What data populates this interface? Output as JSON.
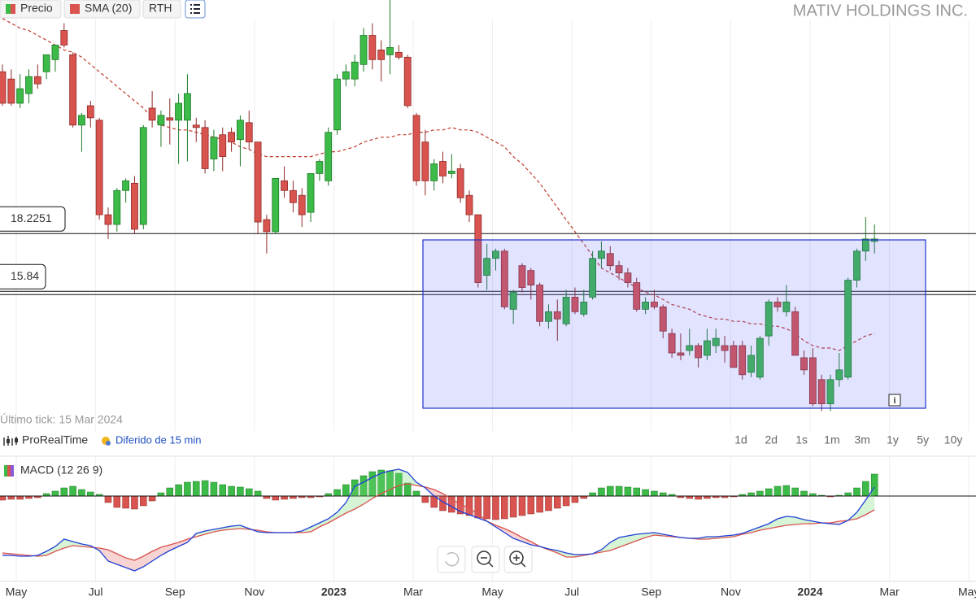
{
  "title": "MATIV HOLDINGS INC.",
  "toolbar": {
    "rth": "RTH"
  },
  "last_tick": "Último tick: 15 Mar 2024",
  "brand": "ProRealTime",
  "delay": "Diferido de 15 min",
  "ranges": [
    "1d",
    "2d",
    "1s",
    "1m",
    "3m",
    "1y",
    "5y",
    "10y"
  ],
  "x_axis": [
    "May",
    "Jul",
    "Sep",
    "Nov",
    "2023",
    "Mar",
    "May",
    "Jul",
    "Sep",
    "Nov",
    "2024",
    "Mar",
    "May"
  ],
  "chart_data": [
    {
      "type": "candlestick",
      "name": "Precio",
      "up_color": "#3dbb48",
      "down_color": "#d9534f",
      "ylim": [
        10.75,
        27.86
      ],
      "levels": [
        18.2251,
        15.84
      ],
      "open": [
        24.9,
        24.6,
        23.6,
        24.0,
        24.7,
        24.9,
        25.4,
        26.6,
        25.6,
        22.7,
        23.5,
        22.9,
        19.0,
        18.6,
        20.0,
        20.3,
        18.6,
        23.4,
        22.7,
        23.0,
        22.9,
        22.9,
        22.7,
        22.6,
        21.3,
        22.3,
        22.4,
        22.1,
        22.8,
        22.0,
        18.8,
        18.3,
        20.4,
        20.0,
        19.8,
        19.1,
        20.7,
        20.4,
        22.5,
        24.6,
        24.6,
        25.2,
        26.4,
        25.8,
        25.6,
        25.7,
        25.5,
        23.1,
        22.0,
        20.4,
        21.2,
        20.7,
        20.9,
        19.8,
        19.0,
        16.5,
        17.2,
        17.5,
        15.1,
        16.9,
        16.7,
        16.1,
        14.6,
        15.0,
        14.5,
        15.6,
        14.9,
        15.6,
        17.2,
        17.4,
        16.9,
        16.6,
        16.2,
        15.1,
        15.4,
        15.2,
        14.1,
        13.3,
        13.4,
        13.6,
        13.2,
        13.6,
        13.6,
        13.6,
        13.6,
        12.5,
        12.3,
        14.0,
        15.4,
        15.0,
        15.0,
        13.1,
        13.1,
        12.2,
        11.2,
        12.2,
        12.3,
        16.3,
        17.5,
        17.9
      ],
      "high": [
        25.2,
        25.0,
        24.8,
        25.0,
        25.2,
        25.6,
        26.0,
        26.9,
        25.7,
        23.2,
        23.7,
        23.0,
        19.3,
        20.1,
        20.5,
        20.6,
        22.7,
        24.1,
        23.3,
        23.8,
        24.0,
        24.8,
        23.0,
        22.9,
        22.5,
        22.6,
        22.6,
        23.1,
        23.3,
        22.0,
        19.0,
        20.5,
        21.0,
        20.4,
        20.1,
        20.6,
        21.3,
        22.6,
        24.8,
        25.2,
        25.6,
        26.7,
        26.9,
        26.2,
        28.2,
        26.0,
        25.6,
        23.2,
        22.5,
        21.3,
        21.6,
        21.5,
        21.1,
        20.0,
        19.0,
        17.8,
        17.6,
        17.6,
        15.9,
        17.0,
        16.8,
        16.2,
        15.3,
        15.5,
        15.9,
        16.0,
        15.9,
        17.5,
        17.9,
        17.7,
        17.1,
        16.8,
        16.4,
        15.6,
        15.9,
        15.3,
        14.3,
        14.1,
        14.3,
        13.7,
        14.3,
        14.3,
        14.0,
        13.8,
        13.8,
        13.6,
        14.0,
        15.5,
        15.6,
        16.1,
        15.2,
        13.4,
        13.5,
        12.4,
        12.4,
        13.3,
        16.4,
        17.6,
        18.9,
        18.6
      ],
      "low": [
        23.5,
        23.5,
        23.4,
        23.6,
        24.2,
        24.6,
        24.9,
        25.9,
        22.6,
        21.6,
        22.6,
        18.8,
        18.0,
        18.3,
        19.5,
        18.2,
        18.4,
        22.6,
        21.8,
        21.9,
        21.1,
        21.2,
        22.0,
        20.7,
        20.8,
        20.8,
        21.6,
        21.0,
        21.7,
        18.2,
        17.4,
        18.2,
        19.7,
        19.1,
        18.5,
        18.7,
        20.4,
        20.2,
        22.3,
        24.3,
        24.3,
        24.9,
        25.0,
        24.5,
        24.8,
        25.4,
        23.4,
        20.2,
        19.8,
        20.0,
        20.3,
        20.5,
        19.5,
        18.7,
        16.0,
        15.9,
        16.7,
        15.1,
        14.5,
        15.8,
        15.5,
        14.4,
        14.3,
        13.8,
        14.4,
        14.9,
        14.8,
        15.5,
        16.8,
        16.7,
        16.3,
        16.0,
        15.0,
        14.9,
        15.1,
        13.9,
        13.1,
        13.0,
        13.2,
        12.7,
        13.0,
        13.3,
        12.9,
        12.7,
        12.2,
        12.3,
        12.2,
        13.6,
        15.0,
        14.8,
        13.2,
        12.4,
        11.1,
        10.9,
        10.9,
        11.9,
        12.2,
        16.0,
        17.1,
        17.4
      ],
      "close": [
        23.6,
        23.6,
        24.2,
        24.7,
        24.4,
        25.6,
        26.0,
        26.0,
        22.7,
        23.1,
        23.0,
        19.0,
        18.6,
        20.0,
        20.4,
        18.4,
        22.6,
        22.9,
        23.1,
        22.9,
        23.6,
        24.0,
        22.6,
        20.9,
        22.2,
        21.4,
        22.0,
        22.9,
        22.0,
        18.7,
        18.3,
        20.5,
        20.0,
        19.5,
        19.0,
        20.7,
        21.2,
        22.4,
        24.6,
        24.9,
        25.3,
        26.4,
        25.4,
        25.4,
        25.9,
        25.5,
        23.5,
        20.4,
        20.4,
        21.1,
        20.6,
        20.8,
        19.7,
        19.0,
        16.2,
        17.2,
        17.5,
        15.2,
        15.8,
        16.0,
        16.1,
        14.6,
        15.0,
        14.7,
        15.6,
        15.0,
        15.4,
        17.2,
        17.5,
        16.9,
        16.6,
        16.2,
        15.1,
        15.4,
        15.2,
        14.2,
        13.3,
        13.2,
        13.6,
        13.1,
        13.8,
        13.9,
        13.4,
        12.7,
        12.4,
        13.2,
        13.9,
        15.4,
        15.2,
        15.4,
        13.2,
        12.6,
        11.2,
        11.2,
        12.2,
        12.6,
        16.3,
        17.5,
        18.0,
        18.0
      ],
      "sma": {
        "name": "SMA (20)",
        "color": "#c0392b",
        "values": [
          27.1,
          26.9,
          26.7,
          26.6,
          26.4,
          26.2,
          26.0,
          25.8,
          25.7,
          25.5,
          25.2,
          24.9,
          24.6,
          24.3,
          24.0,
          23.7,
          23.4,
          23.0,
          22.7,
          22.6,
          22.5,
          22.5,
          22.4,
          22.3,
          22.2,
          22.1,
          22.0,
          21.8,
          21.7,
          21.5,
          21.4,
          21.4,
          21.4,
          21.4,
          21.4,
          21.4,
          21.5,
          21.6,
          21.6,
          21.7,
          21.8,
          22.0,
          22.1,
          22.2,
          22.2,
          22.3,
          22.3,
          22.4,
          22.4,
          22.5,
          22.5,
          22.6,
          22.5,
          22.5,
          22.4,
          22.2,
          22.0,
          21.8,
          21.4,
          21.1,
          20.7,
          20.3,
          19.8,
          19.3,
          18.8,
          18.3,
          17.8,
          17.3,
          16.8,
          16.6,
          16.4,
          16.2,
          16.0,
          15.8,
          15.7,
          15.5,
          15.3,
          15.2,
          15.1,
          14.9,
          14.8,
          14.7,
          14.7,
          14.6,
          14.6,
          14.5,
          14.5,
          14.4,
          14.4,
          14.3,
          14.1,
          13.8,
          13.6,
          13.5,
          13.5,
          13.4,
          13.6,
          13.8,
          14.0,
          14.1
        ]
      }
    },
    {
      "type": "macd",
      "name": "MACD (12 26 9)",
      "ylim": [
        -2.1,
        0.8
      ],
      "macd_color": "#1f3fd6",
      "signal_color": "#d9534f",
      "up_color": "#3dbb48",
      "down_color": "#d9534f",
      "histogram": [
        -0.1,
        -0.08,
        -0.08,
        -0.06,
        -0.04,
        0.06,
        0.12,
        0.2,
        0.24,
        0.16,
        0.1,
        0.04,
        -0.16,
        -0.28,
        -0.3,
        -0.32,
        -0.24,
        -0.12,
        0.08,
        0.2,
        0.28,
        0.34,
        0.36,
        0.38,
        0.34,
        0.28,
        0.24,
        0.22,
        0.18,
        0.12,
        -0.06,
        -0.1,
        -0.08,
        -0.06,
        -0.04,
        -0.04,
        -0.02,
        0.06,
        0.16,
        0.28,
        0.4,
        0.5,
        0.6,
        0.64,
        0.62,
        0.56,
        0.32,
        0.12,
        -0.16,
        -0.28,
        -0.36,
        -0.4,
        -0.44,
        -0.48,
        -0.54,
        -0.56,
        -0.58,
        -0.56,
        -0.52,
        -0.48,
        -0.44,
        -0.4,
        -0.36,
        -0.3,
        -0.24,
        -0.16,
        -0.06,
        0.08,
        0.2,
        0.24,
        0.24,
        0.22,
        0.2,
        0.16,
        0.12,
        0.08,
        0.04,
        -0.04,
        -0.06,
        -0.08,
        -0.06,
        -0.04,
        -0.04,
        -0.02,
        0.04,
        0.08,
        0.12,
        0.18,
        0.24,
        0.26,
        0.2,
        0.12,
        0.06,
        0.02,
        -0.02,
        0.02,
        0.08,
        0.2,
        0.36,
        0.54
      ],
      "macd": [
        -1.46,
        -1.46,
        -1.48,
        -1.48,
        -1.46,
        -1.36,
        -1.24,
        -1.06,
        -1.12,
        -1.18,
        -1.22,
        -1.34,
        -1.6,
        -1.68,
        -1.76,
        -1.84,
        -1.74,
        -1.6,
        -1.46,
        -1.34,
        -1.24,
        -1.14,
        -0.92,
        -0.86,
        -0.82,
        -0.78,
        -0.74,
        -0.72,
        -0.8,
        -0.88,
        -0.9,
        -0.9,
        -0.9,
        -0.9,
        -0.86,
        -0.76,
        -0.66,
        -0.56,
        -0.4,
        -0.16,
        0.24,
        0.34,
        0.46,
        0.56,
        0.62,
        0.66,
        0.58,
        0.34,
        0.2,
        0,
        -0.14,
        -0.26,
        -0.38,
        -0.46,
        -0.54,
        -0.62,
        -0.76,
        -0.9,
        -1.04,
        -1.12,
        -1.2,
        -1.24,
        -1.3,
        -1.34,
        -1.4,
        -1.44,
        -1.44,
        -1.42,
        -1.32,
        -1.14,
        -1.02,
        -0.98,
        -0.94,
        -0.92,
        -0.9,
        -0.94,
        -0.98,
        -1.02,
        -1.04,
        -1.04,
        -1.0,
        -1.0,
        -0.98,
        -0.96,
        -0.92,
        -0.84,
        -0.76,
        -0.68,
        -0.56,
        -0.5,
        -0.52,
        -0.58,
        -0.62,
        -0.66,
        -0.68,
        -0.7,
        -0.6,
        -0.4,
        -0.1,
        0.22
      ],
      "signal": [
        -1.4,
        -1.42,
        -1.44,
        -1.46,
        -1.48,
        -1.46,
        -1.36,
        -1.28,
        -1.22,
        -1.24,
        -1.26,
        -1.28,
        -1.32,
        -1.42,
        -1.52,
        -1.58,
        -1.48,
        -1.36,
        -1.26,
        -1.2,
        -1.14,
        -1.06,
        -1.0,
        -0.94,
        -0.88,
        -0.84,
        -0.82,
        -0.8,
        -0.82,
        -0.84,
        -0.88,
        -0.9,
        -0.9,
        -0.9,
        -0.9,
        -0.88,
        -0.76,
        -0.66,
        -0.54,
        -0.42,
        -0.32,
        -0.2,
        -0.06,
        0.06,
        0.16,
        0.26,
        0.3,
        0.26,
        0.22,
        0.16,
        0.06,
        -0.08,
        -0.2,
        -0.3,
        -0.44,
        -0.62,
        -0.72,
        -0.8,
        -0.9,
        -1.02,
        -1.12,
        -1.24,
        -1.32,
        -1.4,
        -1.5,
        -1.5,
        -1.46,
        -1.42,
        -1.38,
        -1.34,
        -1.26,
        -1.18,
        -1.1,
        -1.02,
        -0.96,
        -0.98,
        -1.0,
        -1.02,
        -1.04,
        -1.06,
        -1.06,
        -1.04,
        -1.02,
        -1.0,
        -0.94,
        -0.9,
        -0.84,
        -0.8,
        -0.76,
        -0.72,
        -0.7,
        -0.68,
        -0.68,
        -0.66,
        -0.66,
        -0.62,
        -0.6,
        -0.56,
        -0.46,
        -0.34
      ]
    }
  ]
}
